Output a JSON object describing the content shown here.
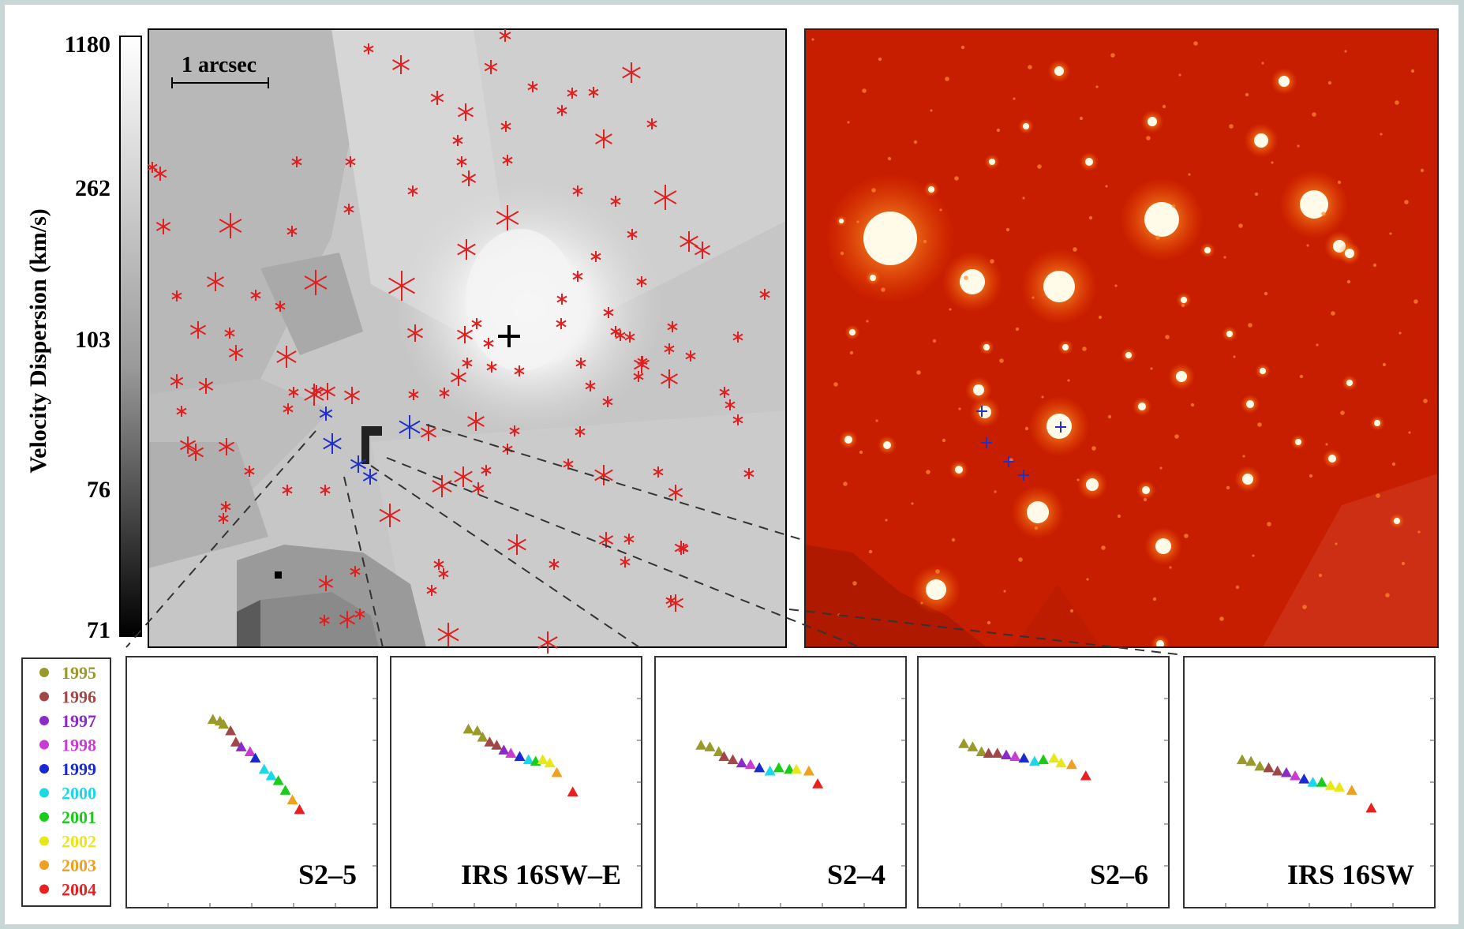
{
  "colorbar": {
    "title": "Velocity Dispersion (km/s)",
    "ticks": [
      "1180",
      "262",
      "103",
      "76",
      "71"
    ]
  },
  "scale_bar": {
    "label": "1 arcsec"
  },
  "legend": {
    "entries": [
      {
        "year": "1995",
        "color": "#9a9a2a"
      },
      {
        "year": "1996",
        "color": "#a04848"
      },
      {
        "year": "1997",
        "color": "#8a2bc8"
      },
      {
        "year": "1998",
        "color": "#c83ccf"
      },
      {
        "year": "1999",
        "color": "#1a2ad2"
      },
      {
        "year": "2000",
        "color": "#1ad8e8"
      },
      {
        "year": "2001",
        "color": "#18cc18"
      },
      {
        "year": "2002",
        "color": "#e8e818"
      },
      {
        "year": "2003",
        "color": "#f0a020"
      },
      {
        "year": "2004",
        "color": "#e82020"
      }
    ]
  },
  "orbit_panels": [
    {
      "label": "S2–5"
    },
    {
      "label": "IRS 16SW–E"
    },
    {
      "label": "S2–4"
    },
    {
      "label": "S2–6"
    },
    {
      "label": "IRS 16SW"
    }
  ],
  "colors": {
    "star_marker": "#e02020",
    "highlight_marker": "#2030c8",
    "center_marker": "#000000",
    "image_background": "#c81e00"
  }
}
